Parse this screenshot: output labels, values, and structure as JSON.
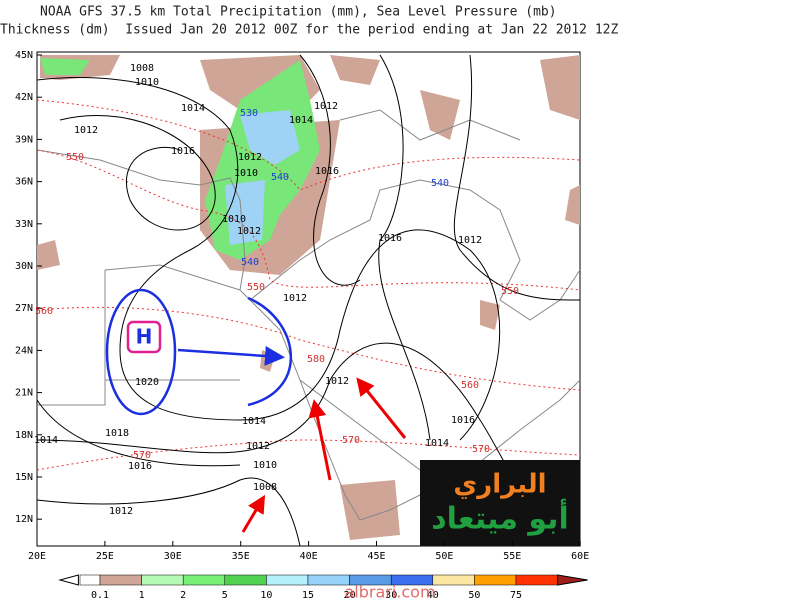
{
  "header": {
    "line1": "NOAA GFS 37.5 km Total Precipitation (mm), Sea Level Pressure (mb)",
    "line2": "Thickness (dm)  Issued Jan 20 2012 00Z for the period ending at Jan 22 2012 12Z"
  },
  "lat_labels": [
    "45N",
    "42N",
    "39N",
    "36N",
    "33N",
    "30N",
    "27N",
    "24N",
    "21N",
    "18N",
    "15N",
    "12N"
  ],
  "lon_labels": [
    "20E",
    "25E",
    "30E",
    "35E",
    "40E",
    "45E",
    "50E",
    "55E",
    "60E"
  ],
  "contour_labels": [
    "1008",
    "1010",
    "1014",
    "1012",
    "1016",
    "550",
    "530",
    "1014",
    "1012",
    "1012",
    "1010",
    "540",
    "1016",
    "540",
    "1010",
    "1012",
    "1016",
    "1012",
    "540",
    "550",
    "1012",
    "550",
    "560",
    "1020",
    "580",
    "1012",
    "560",
    "1016",
    "1014",
    "1018",
    "1014",
    "1014",
    "570",
    "570",
    "570",
    "1012",
    "1016",
    "1010",
    "1008",
    "1012"
  ],
  "high_label": "H",
  "legend_labels": [
    "0.1",
    "1",
    "2",
    "5",
    "10",
    "15",
    "20",
    "30",
    "40",
    "50",
    "75"
  ],
  "logo": {
    "line1": "البراري",
    "line2": "أبو ميتعاد"
  },
  "watermark": "albrari.com"
}
